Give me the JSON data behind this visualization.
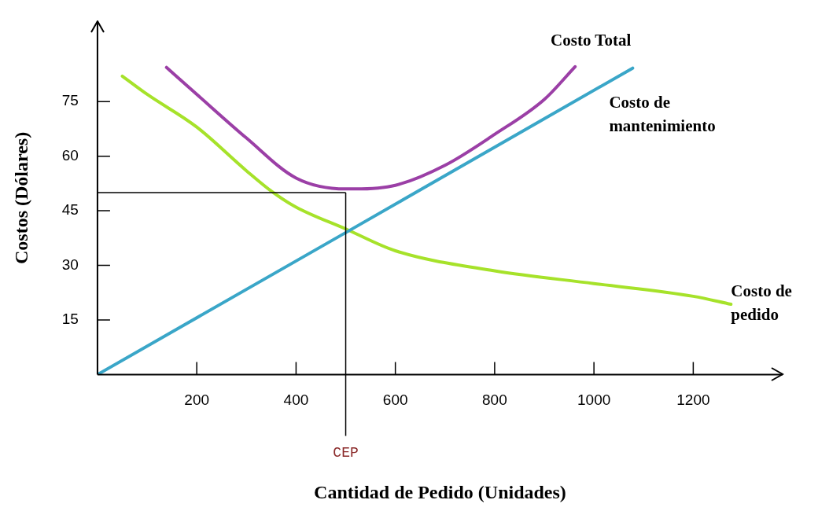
{
  "chart_data": {
    "type": "line",
    "xlabel": "Cantidad de Pedido (Unidades)",
    "ylabel": "Costos (Dólares)",
    "xlim": [
      0,
      1380
    ],
    "ylim": [
      0,
      97
    ],
    "xticks": [
      200,
      400,
      600,
      800,
      1000,
      1200
    ],
    "yticks": [
      15,
      30,
      45,
      60,
      75
    ],
    "legend": false,
    "marker": "none",
    "line_style": "solid",
    "series": [
      {
        "name": "Costo Total",
        "color": "#9b3fa6",
        "x": [
          139,
          200,
          300,
          400,
          500,
          519,
          600,
          700,
          800,
          900,
          962
        ],
        "values": [
          84.4,
          77,
          65,
          54,
          51,
          51,
          52,
          57.5,
          66,
          75.6,
          84.6
        ]
      },
      {
        "name": "Costo de mantenimiento",
        "color": "#3aa6c8",
        "x": [
          0,
          500,
          1078
        ],
        "values": [
          0,
          39,
          84.2
        ]
      },
      {
        "name": "Costo de pedido",
        "color": "#a6e22a",
        "x": [
          50,
          100,
          200,
          300,
          354,
          400,
          500,
          600,
          800,
          1000,
          1200,
          1276
        ],
        "values": [
          82,
          77,
          68,
          56,
          50,
          46,
          40,
          34,
          28.5,
          25,
          21.5,
          19.3
        ]
      }
    ],
    "ref_lines": [
      {
        "axis": "x",
        "value": 500,
        "label": "CEP",
        "color": "#000000"
      },
      {
        "axis": "y",
        "value": 50,
        "color": "#000000"
      }
    ]
  }
}
